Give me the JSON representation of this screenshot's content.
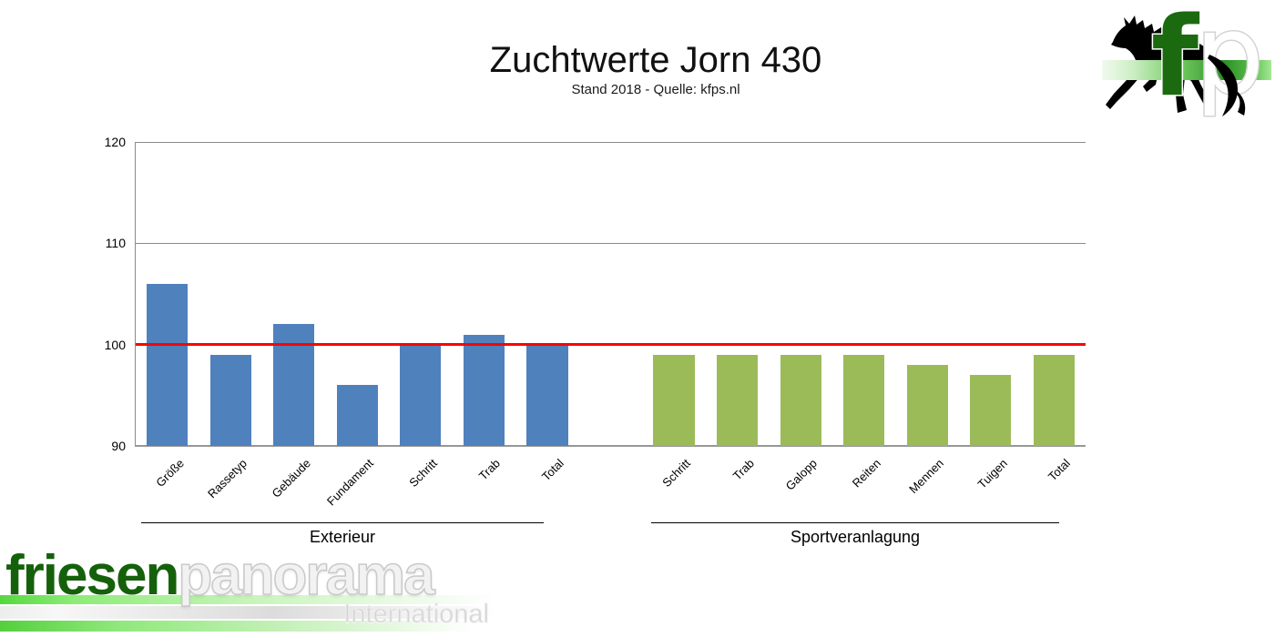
{
  "title": "Zuchtwerte Jorn 430",
  "subtitle": "Stand 2018 - Quelle: kfps.nl",
  "chart_data": {
    "type": "bar",
    "title": "Zuchtwerte Jorn 430",
    "subtitle": "Stand 2018 - Quelle: kfps.nl",
    "ylim": [
      90,
      120
    ],
    "yticks": [
      90,
      100,
      110,
      120
    ],
    "grid": true,
    "legend": "none",
    "reference_line": {
      "value": 100,
      "color": "#FF0000"
    },
    "groups": [
      {
        "label": "Exterieur",
        "bar_color": "#4F81BD",
        "categories": [
          "Größe",
          "Rassetyp",
          "Gebäude",
          "Fundament",
          "Schritt",
          "Trab",
          "Total"
        ],
        "values": [
          106,
          99,
          102,
          96,
          100,
          101,
          100
        ]
      },
      {
        "label": "Sportveranlagung",
        "bar_color": "#9BBB59",
        "categories": [
          "Schritt",
          "Trab",
          "Galopp",
          "Reiten",
          "Mennen",
          "Tuigen",
          "Total"
        ],
        "values": [
          99,
          99,
          99,
          99,
          98,
          97,
          99
        ]
      }
    ]
  },
  "branding": {
    "corner_logo": {
      "icon": "friesian-horse-silhouette",
      "letters": [
        "f",
        "p"
      ],
      "band_color": "#2d8f28"
    },
    "wordmark": {
      "part1": "friesen",
      "part2": "panorama",
      "tagline": "International",
      "part1_color": "#15610b"
    }
  }
}
